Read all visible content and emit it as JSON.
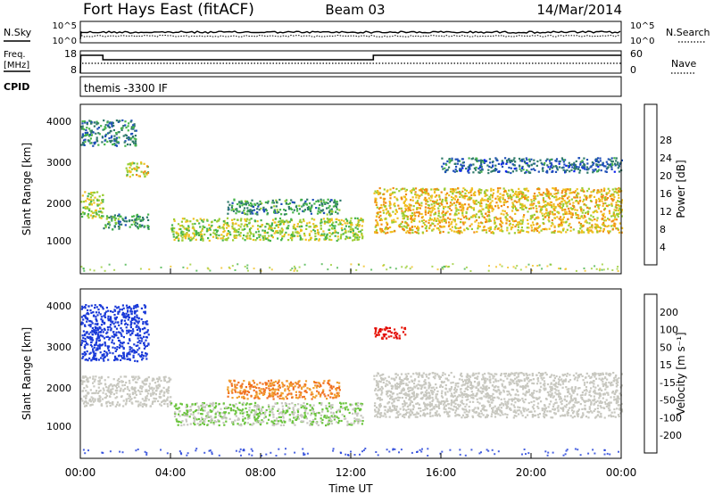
{
  "header": {
    "site": "Fort Hays East (fitACF)",
    "beam": "Beam 03",
    "date": "14/Mar/2014"
  },
  "aux_panels": {
    "nsky_label": "N.Sky",
    "nsearch_label": "N.Search",
    "noise_ticks": [
      "10^5",
      "10^0"
    ],
    "freq_label_1": "Freq.",
    "freq_label_2": "[MHz]",
    "freq_ticks": [
      "18",
      "8"
    ],
    "nave_label": "Nave",
    "nave_ticks": [
      "60",
      "0"
    ],
    "cpid_label": "CPID",
    "cpid_value": "themis -3300 IF"
  },
  "x_axis": {
    "label": "Time UT",
    "ticks": [
      "00:00",
      "04:00",
      "08:00",
      "12:00",
      "16:00",
      "20:00",
      "00:00"
    ]
  },
  "power_panel": {
    "ylabel": "Slant Range [km]",
    "yticks": [
      "1000",
      "2000",
      "3000",
      "4000"
    ],
    "colorbar_label": "Power [dB]",
    "colorbar_ticks": [
      "4",
      "8",
      "12",
      "16",
      "20",
      "24",
      "28"
    ],
    "colors": [
      "#0a1ef0",
      "#1f4fb8",
      "#2f7a6a",
      "#46b44a",
      "#9acd32",
      "#f0c020",
      "#f08a10",
      "#e84010",
      "#e00000"
    ]
  },
  "velocity_panel": {
    "ylabel": "Slant Range [km]",
    "yticks": [
      "1000",
      "2000",
      "3000",
      "4000"
    ],
    "colorbar_label": "Velocity [m s⁻¹]",
    "colorbar_ticks": [
      "200",
      "100",
      "50",
      "15",
      "-15",
      "-50",
      "-100",
      "-200"
    ],
    "colors": [
      "#1a3ad8",
      "#2c5aa8",
      "#2e7f50",
      "#6ac43c",
      "#c8c8c0",
      "#f0a030",
      "#f07020",
      "#e82010",
      "#e00000"
    ]
  },
  "chart_data": [
    {
      "type": "line",
      "title": "N.Sky / N.Search",
      "x": [
        "00:00",
        "04:00",
        "08:00",
        "12:00",
        "16:00",
        "20:00",
        "00:00"
      ],
      "series": [
        {
          "name": "N.Sky",
          "values": [
            10000.0,
            10000.0,
            10000.0,
            10000.0,
            10000.0,
            10000.0,
            10000.0
          ]
        },
        {
          "name": "N.Search",
          "values": [
            3000.0,
            3000.0,
            3000.0,
            3000.0,
            3000.0,
            3000.0,
            3000.0
          ]
        }
      ],
      "yscale": "log"
    },
    {
      "type": "line",
      "title": "Freq. / Nave",
      "series": [
        {
          "name": "Freq. [MHz]",
          "points": [
            [
              0.0,
              8
            ],
            [
              0.02,
              16
            ],
            [
              1.0,
              16
            ],
            [
              1.0,
              14
            ],
            [
              13.0,
              14
            ],
            [
              13.0,
              16
            ],
            [
              24.0,
              16
            ]
          ]
        },
        {
          "name": "Nave",
          "points": [
            [
              0.0,
              0
            ],
            [
              0.02,
              20
            ],
            [
              24.0,
              20
            ]
          ]
        }
      ],
      "ylim": [
        8,
        18
      ]
    },
    {
      "type": "heatmap",
      "title": "Power [dB]",
      "xlabel": "Time UT",
      "ylabel": "Slant Range [km]",
      "xlim_hours": [
        0,
        24
      ],
      "ylim_km": [
        0,
        4500
      ],
      "colorbar": {
        "label": "Power [dB]",
        "ticks": [
          4,
          8,
          12,
          16,
          20,
          24,
          28
        ]
      },
      "features": [
        {
          "t0": 0.0,
          "t1": 1.0,
          "r0": 1500,
          "r1": 2200,
          "power_db": 16
        },
        {
          "t0": 0.0,
          "t1": 2.5,
          "r0": 3400,
          "r1": 4100,
          "power_db": 8
        },
        {
          "t0": 1.0,
          "t1": 3.0,
          "r0": 1200,
          "r1": 1600,
          "power_db": 10
        },
        {
          "t0": 2.0,
          "t1": 3.0,
          "r0": 2600,
          "r1": 3000,
          "power_db": 18
        },
        {
          "t0": 4.0,
          "t1": 12.5,
          "r0": 900,
          "r1": 1500,
          "power_db": 16
        },
        {
          "t0": 6.5,
          "t1": 11.5,
          "r0": 1600,
          "r1": 2000,
          "power_db": 10
        },
        {
          "t0": 13.0,
          "t1": 24.0,
          "r0": 1100,
          "r1": 2300,
          "power_db": 20
        },
        {
          "t0": 16.0,
          "t1": 24.0,
          "r0": 2700,
          "r1": 3100,
          "power_db": 6
        }
      ]
    },
    {
      "type": "heatmap",
      "title": "Velocity",
      "xlabel": "Time UT",
      "ylabel": "Slant Range [km]",
      "xlim_hours": [
        0,
        24
      ],
      "ylim_km": [
        0,
        4500
      ],
      "colorbar": {
        "label": "Velocity [m s-1]",
        "ticks": [
          200,
          100,
          50,
          15,
          -15,
          -50,
          -100,
          -200
        ]
      },
      "features": [
        {
          "t0": 0.0,
          "t1": 3.0,
          "r0": 2600,
          "r1": 4100,
          "velocity": 200
        },
        {
          "t0": 0.0,
          "t1": 4.0,
          "r0": 1400,
          "r1": 2200,
          "velocity": 0
        },
        {
          "t0": 4.0,
          "t1": 12.5,
          "r0": 900,
          "r1": 1500,
          "velocity": 15
        },
        {
          "t0": 6.5,
          "t1": 11.5,
          "r0": 1600,
          "r1": 2100,
          "velocity": -50
        },
        {
          "t0": 13.0,
          "t1": 24.0,
          "r0": 1100,
          "r1": 2300,
          "velocity": 0
        },
        {
          "t0": 13.0,
          "t1": 14.5,
          "r0": 3200,
          "r1": 3500,
          "velocity": -200
        }
      ]
    }
  ]
}
